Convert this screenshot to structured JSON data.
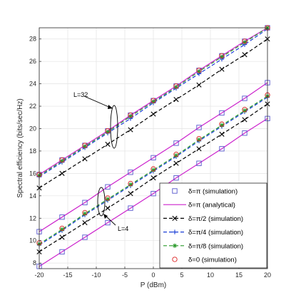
{
  "chart_data": {
    "type": "line",
    "xlabel": "P (dBm)",
    "ylabel": "Spectral efficiency (bits/sec/Hz)",
    "xlim": [
      -20,
      20
    ],
    "ylim": [
      7.5,
      29
    ],
    "xticks": [
      -20,
      -15,
      -10,
      -5,
      0,
      5,
      10,
      15,
      20
    ],
    "yticks": [
      8,
      10,
      12,
      14,
      16,
      18,
      20,
      22,
      24,
      26,
      28
    ],
    "x": [
      -20,
      -16,
      -12,
      -8,
      -4,
      0,
      4,
      8,
      12,
      16,
      20
    ],
    "grid": true,
    "legend_position": "bottom-right",
    "annotations": [
      {
        "text": "L=32",
        "target_group": "L32"
      },
      {
        "text": "L=4",
        "target_group": "L4"
      }
    ],
    "series": [
      {
        "name": "δ=π (simulation)",
        "label_key": "pi_sim",
        "group": "L32",
        "style": "square",
        "color": "#5555cc",
        "values": [
          15.9,
          17.2,
          18.5,
          19.8,
          21.2,
          22.5,
          23.8,
          25.2,
          26.5,
          27.8,
          29.0
        ]
      },
      {
        "name": "δ=π (analytical)",
        "label_key": "pi_ana",
        "group": "L32",
        "style": "solid",
        "color": "#cc22cc",
        "values": [
          15.9,
          17.2,
          18.5,
          19.8,
          21.2,
          22.5,
          23.8,
          25.2,
          26.5,
          27.8,
          29.0
        ]
      },
      {
        "name": "δ=π/2 (simulation)",
        "label_key": "pi2_sim",
        "group": "L32",
        "style": "dashed-x",
        "color": "#000000",
        "values": [
          14.7,
          16.0,
          17.3,
          18.6,
          19.9,
          21.3,
          22.6,
          23.9,
          25.3,
          26.6,
          28.0
        ]
      },
      {
        "name": "δ=π/4 (simulation)",
        "label_key": "pi4_sim",
        "group": "L32",
        "style": "dashed-plus",
        "color": "#1a3fd6",
        "values": [
          15.7,
          17.0,
          18.3,
          19.6,
          20.9,
          22.3,
          23.6,
          24.9,
          26.2,
          27.5,
          28.9
        ]
      },
      {
        "name": "δ=π/8 (simulation)",
        "label_key": "pi8_sim",
        "group": "L32",
        "style": "dashed-star",
        "color": "#2a9a2a",
        "values": [
          15.8,
          17.1,
          18.4,
          19.7,
          21.1,
          22.4,
          23.7,
          25.1,
          26.4,
          27.7,
          29.0
        ]
      },
      {
        "name": "δ=0 (simulation)",
        "label_key": "zero_sim",
        "group": "L32",
        "style": "circle",
        "color": "#dd2222",
        "values": [
          15.9,
          17.2,
          18.5,
          19.8,
          21.2,
          22.5,
          23.8,
          25.2,
          26.5,
          27.8,
          29.0
        ]
      },
      {
        "name": "δ=π (simulation)",
        "group": "L4",
        "style": "square",
        "color": "#5555cc",
        "values": [
          10.8,
          12.1,
          13.4,
          14.8,
          16.1,
          17.4,
          18.7,
          20.1,
          21.4,
          22.7,
          24.1
        ]
      },
      {
        "name": "δ=π (analytical)",
        "group": "L4",
        "style": "solid",
        "color": "#cc22cc",
        "values": [
          10.8,
          12.1,
          13.4,
          14.8,
          16.1,
          17.4,
          18.7,
          20.1,
          21.4,
          22.7,
          24.1
        ]
      },
      {
        "name": "δ=π (simulation)",
        "group": "L4",
        "style": "square",
        "color": "#5555cc",
        "values": [
          7.7,
          9.0,
          10.3,
          11.6,
          12.9,
          14.2,
          15.6,
          16.9,
          18.2,
          19.6,
          20.9
        ]
      },
      {
        "name": "δ=π (analytical)",
        "group": "L4",
        "style": "solid",
        "color": "#cc22cc",
        "values": [
          7.7,
          9.0,
          10.3,
          11.6,
          12.9,
          14.2,
          15.6,
          16.9,
          18.2,
          19.6,
          20.9
        ]
      },
      {
        "name": "δ=π/2 (simulation)",
        "group": "L4",
        "style": "dashed-x",
        "color": "#000000",
        "values": [
          9.0,
          10.3,
          11.6,
          12.9,
          14.2,
          15.6,
          16.9,
          18.2,
          19.5,
          20.8,
          22.2
        ]
      },
      {
        "name": "δ=π/4 (simulation)",
        "group": "L4",
        "style": "dashed-plus",
        "color": "#1a3fd6",
        "values": [
          9.6,
          10.9,
          12.3,
          13.6,
          14.9,
          16.2,
          17.5,
          18.9,
          20.2,
          21.5,
          22.8
        ]
      },
      {
        "name": "δ=π/8 (simulation)",
        "group": "L4",
        "style": "dashed-star",
        "color": "#2a9a2a",
        "values": [
          9.7,
          11.0,
          12.4,
          13.7,
          15.0,
          16.3,
          17.6,
          19.0,
          20.3,
          21.6,
          22.9
        ]
      },
      {
        "name": "δ=0 (simulation)",
        "group": "L4",
        "style": "circle",
        "color": "#dd2222",
        "values": [
          9.8,
          11.1,
          12.5,
          13.8,
          15.1,
          16.4,
          17.7,
          19.1,
          20.4,
          21.7,
          23.0
        ]
      }
    ],
    "legend": [
      {
        "key": "pi_sim",
        "text": "δ=π (simulation)"
      },
      {
        "key": "pi_ana",
        "text": "δ=π (analytical)"
      },
      {
        "key": "pi2_sim",
        "text": "δ=π/2 (simulation)"
      },
      {
        "key": "pi4_sim",
        "text": "δ=π/4 (simulation)"
      },
      {
        "key": "pi8_sim",
        "text": "δ=π/8 (simulation)"
      },
      {
        "key": "zero_sim",
        "text": "δ=0 (simulation)"
      }
    ]
  }
}
